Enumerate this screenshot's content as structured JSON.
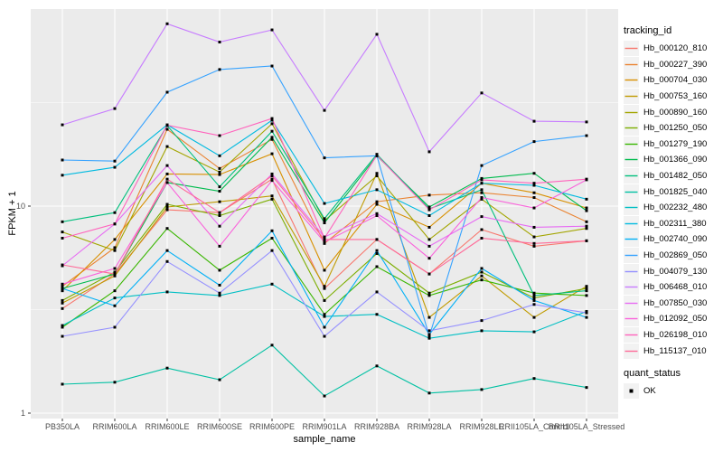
{
  "chart_data": {
    "type": "line",
    "title": "",
    "xlabel": "sample_name",
    "ylabel": "FPKM + 1",
    "y_scale": "log10",
    "ylim": [
      0.93,
      92
    ],
    "grid": true,
    "legend_position": "right",
    "panel_bg": "#EBEBEB",
    "grid_color": "#FFFFFF",
    "axis_text_color": "#4D4D4D",
    "point_color": "#000000",
    "y_ticks": [
      {
        "value": 1,
        "label": "1"
      },
      {
        "value": 10,
        "label": "10"
      }
    ],
    "y_minor_ticks": [
      3.1623,
      31.623
    ],
    "categories": [
      "PB350LA",
      "RRIM600LA",
      "RRIM600LE",
      "RRIM600SE",
      "RRIM600PE",
      "RRIM901LA",
      "RRIM928BA",
      "RRIM928LA",
      "RRIM928LE",
      "RRII105LA_Control",
      "RRII105LA_Stressed"
    ],
    "legend_color_title": "tracking_id",
    "legend_shape_title": "quant_status",
    "quant_items": [
      {
        "label": "OK",
        "shape": "black-square"
      }
    ],
    "series": [
      {
        "name": "Hb_000120_810",
        "color": "#F8766D",
        "values": [
          3.2,
          4.7,
          9.6,
          9.3,
          13.5,
          4.0,
          6.9,
          4.7,
          7.7,
          6.4,
          6.8
        ]
      },
      {
        "name": "Hb_000227_390",
        "color": "#EA8331",
        "values": [
          4.1,
          6.3,
          23.5,
          15.2,
          21.0,
          6.6,
          10.5,
          11.3,
          11.6,
          11.0,
          8.4
        ]
      },
      {
        "name": "Hb_000704_030",
        "color": "#D89000",
        "values": [
          3.9,
          6.9,
          14.3,
          14.2,
          17.9,
          4.9,
          10.2,
          7.9,
          12.9,
          11.6,
          9.8
        ]
      },
      {
        "name": "Hb_000753_160",
        "color": "#C09B00",
        "values": [
          3.4,
          4.6,
          9.9,
          10.5,
          11.2,
          4.1,
          14.4,
          2.9,
          4.6,
          2.9,
          4.1
        ]
      },
      {
        "name": "Hb_000890_160",
        "color": "#A3A500",
        "values": [
          7.5,
          6.1,
          19.4,
          14.6,
          25.0,
          8.5,
          14.0,
          6.9,
          10.8,
          7.1,
          7.8
        ]
      },
      {
        "name": "Hb_001250_050",
        "color": "#7CAE00",
        "values": [
          3.5,
          4.8,
          10.2,
          9.0,
          10.8,
          3.5,
          5.9,
          3.8,
          4.8,
          3.6,
          4.0
        ]
      },
      {
        "name": "Hb_001279_190",
        "color": "#39B600",
        "values": [
          2.6,
          3.9,
          7.8,
          4.9,
          7.0,
          3.0,
          5.1,
          3.7,
          4.4,
          3.8,
          3.7
        ]
      },
      {
        "name": "Hb_001366_090",
        "color": "#00BB4E",
        "values": [
          4.0,
          4.7,
          13.0,
          11.8,
          21.5,
          8.3,
          17.5,
          9.9,
          13.6,
          14.4,
          9.5
        ]
      },
      {
        "name": "Hb_001482_050",
        "color": "#00BF7D",
        "values": [
          8.4,
          9.3,
          24.5,
          12.4,
          23.0,
          8.7,
          17.8,
          9.7,
          12.0,
          3.7,
          3.9
        ]
      },
      {
        "name": "Hb_001825_040",
        "color": "#00C1A3",
        "values": [
          1.38,
          1.41,
          1.65,
          1.45,
          2.13,
          1.21,
          1.69,
          1.25,
          1.3,
          1.47,
          1.33
        ]
      },
      {
        "name": "Hb_002232_480",
        "color": "#00BFC4",
        "values": [
          2.65,
          3.6,
          3.85,
          3.7,
          4.2,
          2.93,
          3.0,
          2.3,
          2.5,
          2.47,
          3.1
        ]
      },
      {
        "name": "Hb_002311_380",
        "color": "#00BAE0",
        "values": [
          14.1,
          15.4,
          24.7,
          17.5,
          26.0,
          10.3,
          12.0,
          9.0,
          12.9,
          12.6,
          10.8
        ]
      },
      {
        "name": "Hb_002740_090",
        "color": "#00B0F6",
        "values": [
          4.0,
          3.3,
          6.1,
          4.15,
          7.6,
          2.6,
          6.1,
          2.4,
          5.0,
          3.5,
          2.9
        ]
      },
      {
        "name": "Hb_002869_050",
        "color": "#35A2FF",
        "values": [
          16.7,
          16.5,
          35.5,
          45.7,
          47.5,
          17.1,
          17.5,
          2.35,
          15.7,
          20.5,
          21.9
        ]
      },
      {
        "name": "Hb_004079_130",
        "color": "#9590FF",
        "values": [
          2.35,
          2.6,
          5.4,
          3.8,
          6.1,
          2.35,
          3.85,
          2.5,
          2.8,
          3.35,
          3.05
        ]
      },
      {
        "name": "Hb_006468_010",
        "color": "#C77CFF",
        "values": [
          24.7,
          29.6,
          76.0,
          62.0,
          71.0,
          29.0,
          67.6,
          18.3,
          35.2,
          25.7,
          25.5
        ]
      },
      {
        "name": "Hb_007850_030",
        "color": "#E76BF3",
        "values": [
          5.15,
          8.2,
          15.7,
          8.0,
          14.3,
          7.1,
          9.2,
          6.4,
          8.9,
          7.9,
          8.0
        ]
      },
      {
        "name": "Hb_012092_050",
        "color": "#FA62DB",
        "values": [
          4.2,
          5.0,
          13.0,
          6.4,
          13.3,
          6.7,
          9.0,
          5.6,
          11.0,
          9.8,
          13.4
        ]
      },
      {
        "name": "Hb_026198_010",
        "color": "#FF62BC",
        "values": [
          7.0,
          8.2,
          24.6,
          21.9,
          26.5,
          7.0,
          17.6,
          9.6,
          13.4,
          12.9,
          13.5
        ]
      },
      {
        "name": "Hb_115137_010",
        "color": "#FF6A98",
        "values": [
          5.2,
          4.7,
          13.5,
          9.3,
          14.0,
          6.9,
          6.9,
          4.7,
          7.0,
          6.6,
          6.8
        ]
      }
    ]
  }
}
